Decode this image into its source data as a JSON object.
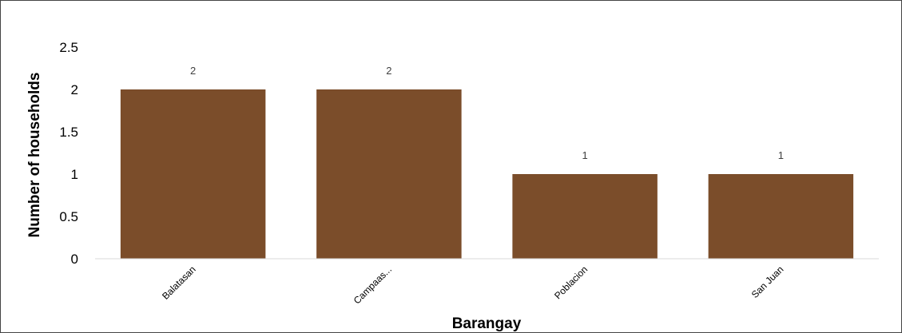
{
  "chart_data": {
    "type": "bar",
    "title": "",
    "xlabel": "Barangay",
    "ylabel": "Number of households",
    "categories": [
      "Balatasan",
      "Campaas...",
      "Poblacion",
      "San Juan"
    ],
    "values": [
      2,
      2,
      1,
      1
    ],
    "data_labels": [
      "2",
      "2",
      "1",
      "1"
    ],
    "ylim": [
      0,
      2.5
    ],
    "yticks": [
      0,
      0.5,
      1,
      1.5,
      2,
      2.5
    ],
    "ytick_labels": [
      "0",
      "0.5",
      "1",
      "1.5",
      "2",
      "2.5"
    ],
    "bar_color": "#7b4d2a",
    "grid": false,
    "legend": "none"
  }
}
